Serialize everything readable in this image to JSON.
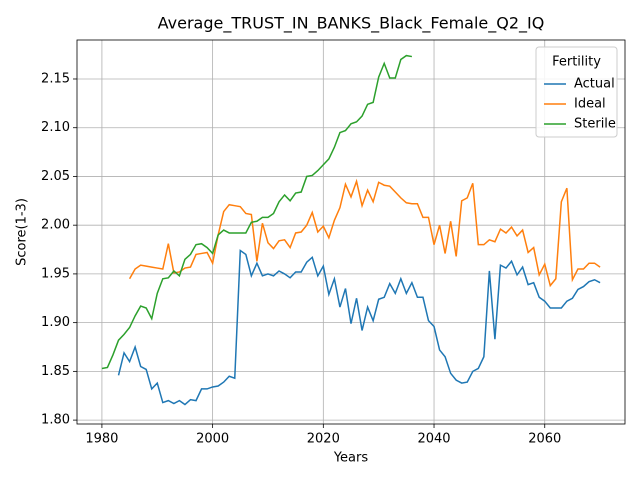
{
  "chart_data": {
    "type": "line",
    "title": "Average_TRUST_IN_BANKS_Black_Female_Q2_IQ",
    "xlabel": "Years",
    "ylabel": "Score(1-3)",
    "x": [
      1980,
      1981,
      1982,
      1983,
      1984,
      1985,
      1986,
      1987,
      1988,
      1989,
      1990,
      1991,
      1992,
      1993,
      1994,
      1995,
      1996,
      1997,
      1998,
      1999,
      2000,
      2001,
      2002,
      2003,
      2004,
      2005,
      2006,
      2007,
      2008,
      2009,
      2010,
      2011,
      2012,
      2013,
      2014,
      2015,
      2016,
      2017,
      2018,
      2019,
      2020,
      2021,
      2022,
      2023,
      2024,
      2025,
      2026,
      2027,
      2028,
      2029,
      2030,
      2031,
      2032,
      2033,
      2034,
      2035,
      2036,
      2037,
      2038,
      2039,
      2040,
      2041,
      2042,
      2043,
      2044,
      2045,
      2046,
      2047,
      2048,
      2049,
      2050,
      2051,
      2052,
      2053,
      2054,
      2055,
      2056,
      2057,
      2058,
      2059,
      2060,
      2061,
      2062,
      2063,
      2064,
      2065,
      2066,
      2067,
      2068,
      2069,
      2070
    ],
    "series": [
      {
        "name": "Actual",
        "color": "#1f77b4",
        "values": [
          null,
          null,
          null,
          1.846,
          1.869,
          1.86,
          1.875,
          1.855,
          1.852,
          1.832,
          1.838,
          1.818,
          1.82,
          1.817,
          1.82,
          1.816,
          1.821,
          1.82,
          1.832,
          1.832,
          1.834,
          1.835,
          1.839,
          1.845,
          1.843,
          1.974,
          1.97,
          1.948,
          1.961,
          1.948,
          1.95,
          1.948,
          1.953,
          1.95,
          1.946,
          1.952,
          1.952,
          1.962,
          1.967,
          1.948,
          1.958,
          1.929,
          1.945,
          1.916,
          1.935,
          1.899,
          1.925,
          1.892,
          1.916,
          1.902,
          1.924,
          1.926,
          1.94,
          1.93,
          1.945,
          1.93,
          1.941,
          1.926,
          1.926,
          1.902,
          1.896,
          1.872,
          1.865,
          1.848,
          1.841,
          1.838,
          1.839,
          1.85,
          1.853,
          1.865,
          1.953,
          1.883,
          1.959,
          1.956,
          1.963,
          1.949,
          1.957,
          1.939,
          1.941,
          1.926,
          1.922,
          1.915,
          1.915,
          1.915,
          1.922,
          1.925,
          1.934,
          1.937,
          1.942,
          1.944,
          1.941
        ]
      },
      {
        "name": "Ideal",
        "color": "#ff7f0e",
        "values": [
          null,
          null,
          null,
          null,
          null,
          1.945,
          1.955,
          1.959,
          1.958,
          1.957,
          1.956,
          1.955,
          1.981,
          1.951,
          1.952,
          1.956,
          1.957,
          1.97,
          1.971,
          1.972,
          1.961,
          1.99,
          2.014,
          2.021,
          2.02,
          2.019,
          2.012,
          2.011,
          1.963,
          2.002,
          1.982,
          1.976,
          1.984,
          1.985,
          1.977,
          1.992,
          1.993,
          2.0,
          2.013,
          1.993,
          1.999,
          1.987,
          2.005,
          2.018,
          2.042,
          2.029,
          2.045,
          2.02,
          2.036,
          2.024,
          2.044,
          2.041,
          2.04,
          2.034,
          2.028,
          2.023,
          2.022,
          2.022,
          2.008,
          2.008,
          1.98,
          2.0,
          1.971,
          2.004,
          1.968,
          2.025,
          2.028,
          2.043,
          1.98,
          1.98,
          1.985,
          1.983,
          1.996,
          1.992,
          1.998,
          1.989,
          1.995,
          1.972,
          1.977,
          1.949,
          1.96,
          1.938,
          1.945,
          2.024,
          2.038,
          1.944,
          1.955,
          1.955,
          1.961,
          1.961,
          1.957
        ]
      },
      {
        "name": "Sterile",
        "color": "#2ca02c",
        "values": [
          1.853,
          1.854,
          1.867,
          1.882,
          1.888,
          1.895,
          1.907,
          1.917,
          1.915,
          1.904,
          1.93,
          1.945,
          1.946,
          1.953,
          1.948,
          1.965,
          1.97,
          1.98,
          1.981,
          1.977,
          1.971,
          1.99,
          1.995,
          1.992,
          1.992,
          1.992,
          1.992,
          2.003,
          2.004,
          2.008,
          2.008,
          2.012,
          2.024,
          2.031,
          2.025,
          2.033,
          2.034,
          2.05,
          2.051,
          2.056,
          2.062,
          2.068,
          2.08,
          2.095,
          2.097,
          2.104,
          2.106,
          2.112,
          2.124,
          2.126,
          2.152,
          2.166,
          2.151,
          2.151,
          2.17,
          2.174,
          2.173,
          null,
          null,
          null,
          null,
          null,
          null,
          null,
          null,
          null,
          null,
          null,
          null,
          null,
          null,
          null,
          null,
          null,
          null,
          null,
          null,
          null,
          null,
          null,
          null,
          null,
          null,
          null,
          null,
          null,
          null,
          null,
          null,
          null,
          null
        ]
      }
    ],
    "xlim": [
      1975.5,
      2074.5
    ],
    "xticks": [
      1980,
      2000,
      2020,
      2040,
      2060
    ],
    "ylim": [
      1.796,
      2.19
    ],
    "yticks": [
      {
        "value": 1.8,
        "label": "1.80"
      },
      1.85,
      {
        "value": 1.9,
        "label": "1.90"
      },
      1.95,
      {
        "value": 2.0,
        "label": "2.00"
      },
      2.05,
      {
        "value": 2.1,
        "label": "2.10"
      },
      2.15
    ],
    "grid": true,
    "legend_title": "Fertility",
    "legend": "upper right"
  }
}
